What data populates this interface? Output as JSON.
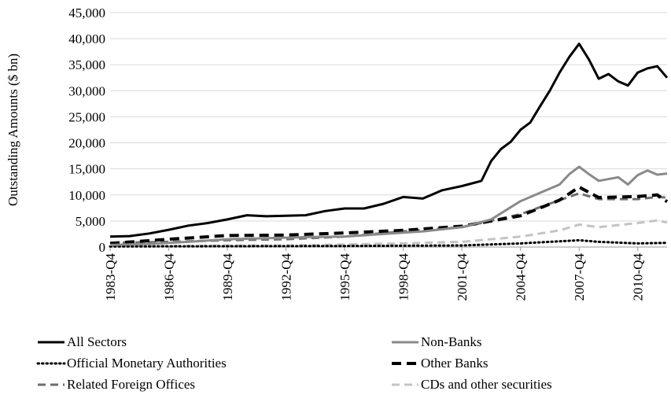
{
  "chart_data": {
    "type": "line",
    "title": "",
    "ylabel": "Outstanding Amounts ($ bn)",
    "xlabel": "",
    "ylim": [
      0,
      45000
    ],
    "yticks": [
      0,
      5000,
      10000,
      15000,
      20000,
      25000,
      30000,
      35000,
      40000,
      45000
    ],
    "ytick_labels": [
      "0",
      "5,000",
      "10,000",
      "15,000",
      "20,000",
      "25,000",
      "30,000",
      "35,000",
      "40,000",
      "45,000"
    ],
    "x_start_quarter": "1983-Q4",
    "x_end_quarter": "2012-Q2",
    "xtick_labels": [
      "1983-Q4",
      "1986-Q4",
      "1989-Q4",
      "1992-Q4",
      "1995-Q4",
      "1998-Q4",
      "2001-Q4",
      "2004-Q4",
      "2007-Q4",
      "2010-Q4"
    ],
    "grid": "horizontal",
    "legend_position": "bottom",
    "series": [
      {
        "name": "All Sectors",
        "color": "#000000",
        "style": "solid",
        "x": [
          "1983-Q4",
          "1984-Q4",
          "1985-Q4",
          "1986-Q4",
          "1987-Q4",
          "1988-Q4",
          "1989-Q4",
          "1990-Q4",
          "1991-Q4",
          "1992-Q4",
          "1993-Q4",
          "1994-Q4",
          "1995-Q4",
          "1996-Q4",
          "1997-Q4",
          "1998-Q4",
          "1999-Q4",
          "2000-Q4",
          "2001-Q4",
          "2002-Q4",
          "2003-Q2",
          "2003-Q4",
          "2004-Q2",
          "2004-Q4",
          "2005-Q2",
          "2005-Q4",
          "2006-Q2",
          "2006-Q4",
          "2007-Q2",
          "2007-Q4",
          "2008-Q2",
          "2008-Q4",
          "2009-Q2",
          "2009-Q4",
          "2010-Q2",
          "2010-Q4",
          "2011-Q2",
          "2011-Q4",
          "2012-Q2"
        ],
        "values": [
          2000,
          2100,
          2600,
          3300,
          4100,
          4600,
          5300,
          6100,
          5900,
          6000,
          6100,
          6900,
          7400,
          7400,
          8300,
          9600,
          9300,
          10900,
          11700,
          12700,
          16500,
          18800,
          20200,
          22500,
          23900,
          27000,
          30000,
          33500,
          36500,
          39000,
          36000,
          32300,
          33200,
          31800,
          31000,
          33500,
          34300,
          34700,
          32500
        ]
      },
      {
        "name": "Non-Banks",
        "color": "#8a8a8a",
        "style": "solid",
        "x": [
          "1983-Q4",
          "1985-Q4",
          "1987-Q4",
          "1989-Q4",
          "1991-Q4",
          "1993-Q4",
          "1995-Q4",
          "1997-Q4",
          "1999-Q4",
          "2001-Q4",
          "2003-Q2",
          "2004-Q4",
          "2005-Q4",
          "2006-Q4",
          "2007-Q2",
          "2007-Q4",
          "2008-Q2",
          "2008-Q4",
          "2009-Q4",
          "2010-Q2",
          "2010-Q4",
          "2011-Q2",
          "2011-Q4",
          "2012-Q2"
        ],
        "values": [
          400,
          600,
          1000,
          1500,
          1700,
          1900,
          2000,
          2500,
          3000,
          3800,
          5300,
          8800,
          10400,
          12000,
          14000,
          15400,
          14000,
          12700,
          13400,
          12000,
          13800,
          14700,
          13900,
          14100
        ]
      },
      {
        "name": "Official Monetary Authorities",
        "color": "#000000",
        "style": "dotted",
        "x": [
          "1983-Q4",
          "1989-Q4",
          "1995-Q4",
          "2001-Q4",
          "2004-Q4",
          "2007-Q4",
          "2008-Q4",
          "2010-Q4",
          "2012-Q2"
        ],
        "values": [
          100,
          150,
          200,
          300,
          700,
          1300,
          1000,
          700,
          800
        ]
      },
      {
        "name": "Other Banks",
        "color": "#000000",
        "style": "dashed",
        "x": [
          "1983-Q4",
          "1986-Q4",
          "1989-Q4",
          "1992-Q4",
          "1995-Q4",
          "1998-Q4",
          "2001-Q4",
          "2004-Q4",
          "2006-Q4",
          "2007-Q4",
          "2008-Q4",
          "2010-Q4",
          "2011-Q4",
          "2012-Q2"
        ],
        "values": [
          700,
          1500,
          2200,
          2300,
          2700,
          3200,
          4000,
          6000,
          9000,
          11500,
          9500,
          9700,
          10000,
          8700
        ]
      },
      {
        "name": "Related Foreign Offices",
        "color": "#6e6e6e",
        "style": "dashed",
        "x": [
          "1983-Q4",
          "1986-Q4",
          "1989-Q4",
          "1992-Q4",
          "1995-Q4",
          "1998-Q4",
          "2001-Q4",
          "2004-Q4",
          "2006-Q4",
          "2007-Q4",
          "2008-Q4",
          "2010-Q4",
          "2011-Q4",
          "2012-Q2"
        ],
        "values": [
          800,
          1000,
          1300,
          1500,
          2000,
          3000,
          3800,
          6300,
          9000,
          10300,
          9200,
          9200,
          9600,
          9500
        ]
      },
      {
        "name": "CDs and other securities",
        "color": "#c4c4c4",
        "style": "dashed",
        "x": [
          "1983-Q4",
          "1986-Q4",
          "1989-Q4",
          "1992-Q4",
          "1995-Q4",
          "1998-Q4",
          "2001-Q4",
          "2004-Q4",
          "2006-Q4",
          "2007-Q4",
          "2008-Q4",
          "2010-Q4",
          "2011-Q4",
          "2012-Q2"
        ],
        "values": [
          100,
          200,
          300,
          300,
          500,
          700,
          1000,
          2000,
          3200,
          4300,
          3800,
          4600,
          5100,
          4700
        ]
      }
    ]
  }
}
